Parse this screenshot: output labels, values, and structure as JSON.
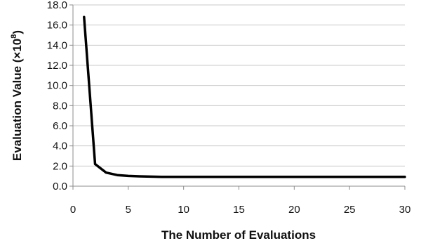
{
  "chart_data": {
    "type": "line",
    "xlabel": "The Number of Evaluations",
    "ylabel_main": "Evaluation Value (×10",
    "ylabel_sup": "8",
    "ylabel_close": ")",
    "xlim": [
      0,
      30
    ],
    "ylim": [
      0,
      18
    ],
    "xticks": [
      0,
      5,
      10,
      15,
      20,
      25,
      30
    ],
    "xtick_labels": [
      "0",
      "5",
      "10",
      "15",
      "20",
      "25",
      "30"
    ],
    "yticks": [
      0,
      2,
      4,
      6,
      8,
      10,
      12,
      14,
      16,
      18
    ],
    "ytick_labels": [
      "0.0",
      "2.0",
      "4.0",
      "6.0",
      "8.0",
      "10.0",
      "12.0",
      "14.0",
      "16.0",
      "18.0"
    ],
    "grid": "horizontal",
    "series": [
      {
        "color": "#000000",
        "x": [
          1,
          2,
          3,
          4,
          5,
          6,
          7,
          8,
          9,
          10,
          11,
          12,
          13,
          14,
          15,
          16,
          17,
          18,
          19,
          20,
          21,
          22,
          23,
          24,
          25,
          26,
          27,
          28,
          29,
          30
        ],
        "y": [
          16.8,
          2.2,
          1.35,
          1.1,
          1.02,
          0.98,
          0.95,
          0.92,
          0.92,
          0.92,
          0.92,
          0.92,
          0.92,
          0.92,
          0.92,
          0.92,
          0.92,
          0.92,
          0.92,
          0.92,
          0.92,
          0.92,
          0.92,
          0.92,
          0.92,
          0.92,
          0.92,
          0.92,
          0.92,
          0.92
        ]
      }
    ]
  }
}
